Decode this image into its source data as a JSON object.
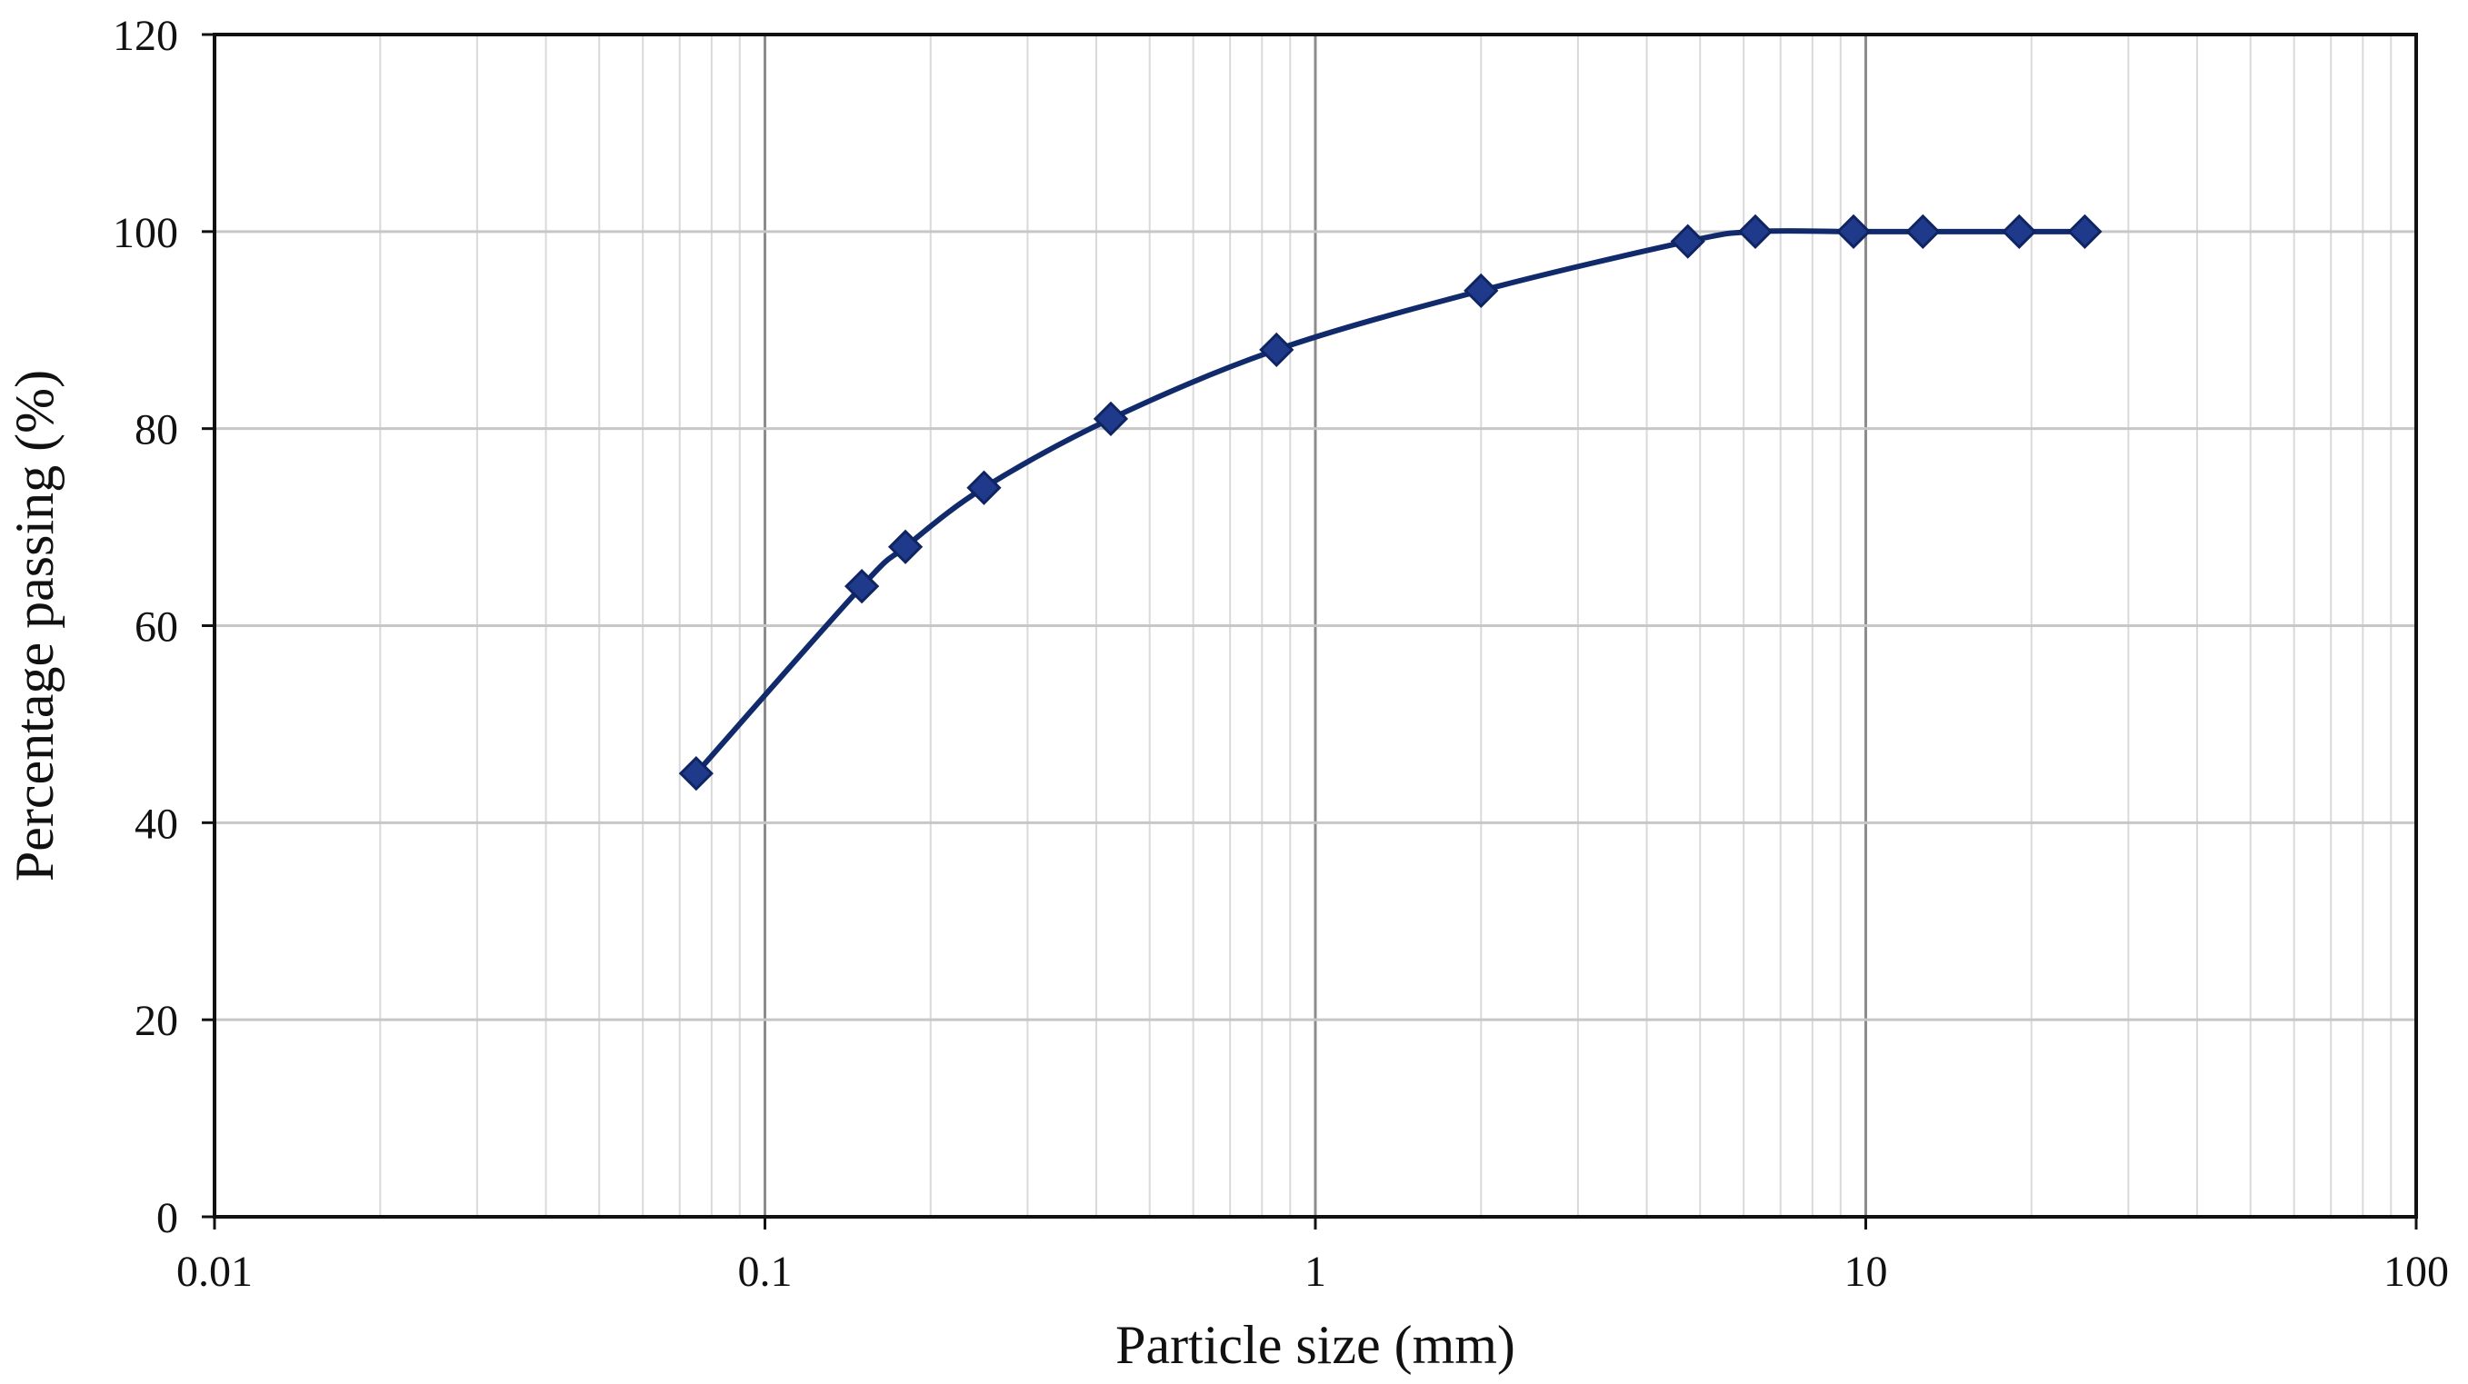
{
  "chart_data": {
    "type": "line",
    "title": "",
    "xlabel": "Particle size (mm)",
    "ylabel": "Percentage passing (%)",
    "x_scale": "log",
    "xlim": [
      0.01,
      100
    ],
    "ylim": [
      0,
      120
    ],
    "x_ticks": [
      "0.01",
      "0.1",
      "1",
      "10",
      "100"
    ],
    "y_ticks": [
      "0",
      "20",
      "40",
      "60",
      "80",
      "100",
      "120"
    ],
    "grid": true,
    "legend": "none",
    "series": [
      {
        "color": "#1f3a8a",
        "marker": "diamond",
        "x": [
          0.075,
          0.15,
          0.18,
          0.25,
          0.425,
          0.85,
          2.0,
          4.75,
          6.3,
          9.5,
          12.7,
          19.0,
          25.0
        ],
        "y": [
          45,
          64,
          68,
          74,
          81,
          88,
          94,
          99,
          100,
          100,
          100,
          100,
          100
        ]
      }
    ]
  }
}
